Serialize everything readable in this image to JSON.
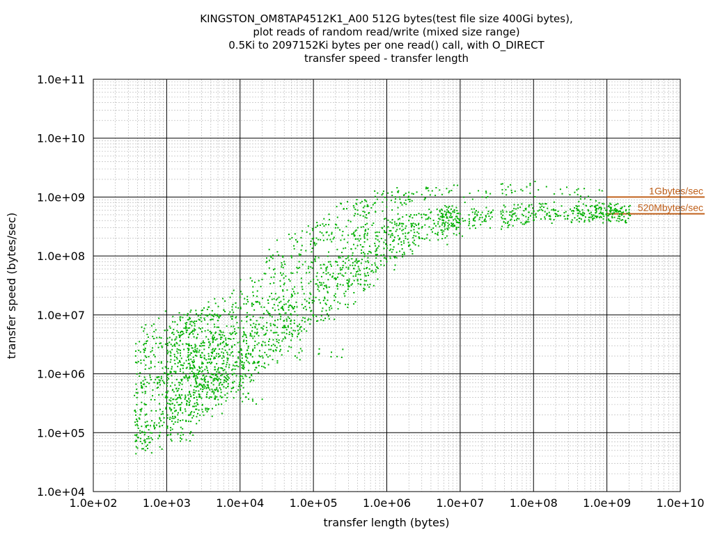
{
  "chart_data": {
    "type": "scatter",
    "title_lines": [
      "KINGSTON_OM8TAP4512K1_A00 512G bytes(test file size 400Gi bytes),",
      "plot reads of random read/write (mixed size range)",
      "0.5Ki to 2097152Ki bytes per one read() call, with O_DIRECT",
      "transfer speed - transfer length"
    ],
    "xlabel": "transfer length (bytes)",
    "ylabel": "transfer speed (bytes/sec)",
    "x_scale": "log",
    "y_scale": "log",
    "xlim": [
      100,
      10000000000
    ],
    "ylim": [
      10000,
      100000000000
    ],
    "x_ticks": [
      "1.0e+02",
      "1.0e+03",
      "1.0e+04",
      "1.0e+05",
      "1.0e+06",
      "1.0e+07",
      "1.0e+08",
      "1.0e+09",
      "1.0e+10"
    ],
    "y_ticks": [
      "1.0e+04",
      "1.0e+05",
      "1.0e+06",
      "1.0e+07",
      "1.0e+08",
      "1.0e+09",
      "1.0e+10",
      "1.0e+11"
    ],
    "grid": true,
    "point_color": "#00b000",
    "reference_color": "#c0601a",
    "reference_lines": [
      {
        "label": "1Gbytes/sec",
        "y": 1000000000,
        "x_start": 1000000000
      },
      {
        "label": "520Mbytes/sec",
        "y": 520000000,
        "x_start": 1000000000
      }
    ],
    "series": [
      {
        "points": [
          [
            512,
            50000
          ],
          [
            512,
            70000
          ],
          [
            512,
            100000
          ],
          [
            512,
            150000
          ],
          [
            512,
            200000
          ],
          [
            512,
            300000
          ],
          [
            512,
            500000
          ],
          [
            512,
            800000
          ],
          [
            512,
            1200000
          ],
          [
            512,
            2000000
          ],
          [
            512,
            2700000
          ],
          [
            1024,
            90000
          ],
          [
            1024,
            120000
          ],
          [
            1024,
            200000
          ],
          [
            1024,
            400000
          ],
          [
            1024,
            700000
          ],
          [
            1024,
            1000000
          ],
          [
            1024,
            1600000
          ],
          [
            1024,
            2500000
          ],
          [
            1024,
            4000000
          ],
          [
            1024,
            5500000
          ],
          [
            1536,
            160000
          ],
          [
            1536,
            250000
          ],
          [
            1536,
            400000
          ],
          [
            1536,
            700000
          ],
          [
            1536,
            1200000
          ],
          [
            1536,
            2500000
          ],
          [
            1536,
            5000000
          ],
          [
            1536,
            8000000
          ],
          [
            2048,
            200000
          ],
          [
            2048,
            300000
          ],
          [
            2048,
            500000
          ],
          [
            2048,
            900000
          ],
          [
            2048,
            1500000
          ],
          [
            2048,
            3000000
          ],
          [
            2048,
            6000000
          ],
          [
            2048,
            9000000
          ],
          [
            2560,
            250000
          ],
          [
            2560,
            400000
          ],
          [
            2560,
            700000
          ],
          [
            2560,
            1000000
          ],
          [
            2560,
            2000000
          ],
          [
            2560,
            4000000
          ],
          [
            3072,
            300000
          ],
          [
            3072,
            500000
          ],
          [
            3072,
            800000
          ],
          [
            3072,
            1500000
          ],
          [
            3072,
            3000000
          ],
          [
            3072,
            6000000
          ],
          [
            4096,
            400000
          ],
          [
            4096,
            700000
          ],
          [
            4096,
            1000000
          ],
          [
            4096,
            2000000
          ],
          [
            4096,
            5000000
          ],
          [
            4096,
            10000000
          ],
          [
            5000,
            500000
          ],
          [
            5000,
            800000
          ],
          [
            5000,
            1200000
          ],
          [
            5000,
            3000000
          ],
          [
            5000,
            8000000
          ],
          [
            6000,
            600000
          ],
          [
            6000,
            1000000
          ],
          [
            6000,
            1500000
          ],
          [
            6000,
            3500000
          ],
          [
            6000,
            12000000
          ],
          [
            8000,
            700000
          ],
          [
            8000,
            1200000
          ],
          [
            8000,
            2000000
          ],
          [
            8000,
            5000000
          ],
          [
            8000,
            15000000
          ],
          [
            10000,
            900000
          ],
          [
            10000,
            1500000
          ],
          [
            10000,
            2500000
          ],
          [
            10000,
            6000000
          ],
          [
            10000,
            20000000
          ],
          [
            12000,
            400000
          ],
          [
            15000,
            1500000
          ],
          [
            15000,
            2500000
          ],
          [
            15000,
            4000000
          ],
          [
            15000,
            30000000
          ],
          [
            20000,
            2000000
          ],
          [
            20000,
            3000000
          ],
          [
            20000,
            6000000
          ],
          [
            20000,
            40000000
          ],
          [
            30000,
            3000000
          ],
          [
            30000,
            5000000
          ],
          [
            30000,
            8000000
          ],
          [
            30000,
            12000000
          ],
          [
            30000,
            50000000
          ],
          [
            40000,
            5000000
          ],
          [
            40000,
            8000000
          ],
          [
            40000,
            15000000
          ],
          [
            40000,
            80000000
          ],
          [
            50000,
            6000000
          ],
          [
            50000,
            10000000
          ],
          [
            50000,
            20000000
          ],
          [
            50000,
            100000000
          ],
          [
            70000,
            8000000
          ],
          [
            70000,
            15000000
          ],
          [
            70000,
            30000000
          ],
          [
            70000,
            150000000
          ],
          [
            100000,
            10000000
          ],
          [
            100000,
            20000000
          ],
          [
            100000,
            40000000
          ],
          [
            100000,
            200000000
          ],
          [
            120000,
            2200000
          ],
          [
            150000,
            15000000
          ],
          [
            150000,
            30000000
          ],
          [
            150000,
            60000000
          ],
          [
            150000,
            250000000
          ],
          [
            200000,
            20000000
          ],
          [
            200000,
            40000000
          ],
          [
            200000,
            80000000
          ],
          [
            200000,
            300000000
          ],
          [
            300000,
            30000000
          ],
          [
            300000,
            60000000
          ],
          [
            300000,
            100000000
          ],
          [
            300000,
            400000000
          ],
          [
            400000,
            40000000
          ],
          [
            400000,
            80000000
          ],
          [
            400000,
            150000000
          ],
          [
            400000,
            600000000
          ],
          [
            500000,
            50000000
          ],
          [
            500000,
            100000000
          ],
          [
            500000,
            200000000
          ],
          [
            500000,
            700000000
          ],
          [
            700000,
            70000000
          ],
          [
            700000,
            120000000
          ],
          [
            700000,
            250000000
          ],
          [
            700000,
            800000000
          ],
          [
            1000000,
            80000000
          ],
          [
            1000000,
            150000000
          ],
          [
            1000000,
            300000000
          ],
          [
            1000000,
            900000000
          ],
          [
            1500000,
            120000000
          ],
          [
            1500000,
            200000000
          ],
          [
            1500000,
            350000000
          ],
          [
            1500000,
            1000000000
          ],
          [
            2000000,
            150000000
          ],
          [
            2000000,
            250000000
          ],
          [
            2000000,
            400000000
          ],
          [
            3000000,
            200000000
          ],
          [
            3000000,
            300000000
          ],
          [
            3000000,
            450000000
          ],
          [
            3000000,
            1100000000
          ],
          [
            5000000,
            250000000
          ],
          [
            5000000,
            350000000
          ],
          [
            5000000,
            500000000
          ],
          [
            7000000,
            300000000
          ],
          [
            7000000,
            400000000
          ],
          [
            7000000,
            550000000
          ],
          [
            7000000,
            1200000000
          ],
          [
            10000000,
            350000000
          ],
          [
            10000000,
            420000000
          ],
          [
            10000000,
            520000000
          ],
          [
            20000000,
            380000000
          ],
          [
            20000000,
            450000000
          ],
          [
            20000000,
            550000000
          ],
          [
            20000000,
            1000000000
          ],
          [
            50000000,
            420000000
          ],
          [
            50000000,
            480000000
          ],
          [
            50000000,
            560000000
          ],
          [
            50000000,
            1300000000
          ],
          [
            100000000,
            450000000
          ],
          [
            100000000,
            500000000
          ],
          [
            100000000,
            580000000
          ],
          [
            150000000,
            1500000000
          ],
          [
            200000000,
            470000000
          ],
          [
            200000000,
            520000000
          ],
          [
            200000000,
            600000000
          ],
          [
            400000000,
            480000000
          ],
          [
            400000000,
            530000000
          ],
          [
            400000000,
            620000000
          ],
          [
            400000000,
            1100000000
          ],
          [
            700000000,
            470000000
          ],
          [
            700000000,
            540000000
          ],
          [
            700000000,
            600000000
          ],
          [
            1000000000,
            480000000
          ],
          [
            1000000000,
            530000000
          ],
          [
            1000000000,
            600000000
          ],
          [
            1500000000,
            470000000
          ],
          [
            1500000000,
            520000000
          ],
          [
            1500000000,
            580000000
          ],
          [
            2000000000,
            500000000
          ],
          [
            2000000000,
            550000000
          ]
        ]
      }
    ]
  }
}
